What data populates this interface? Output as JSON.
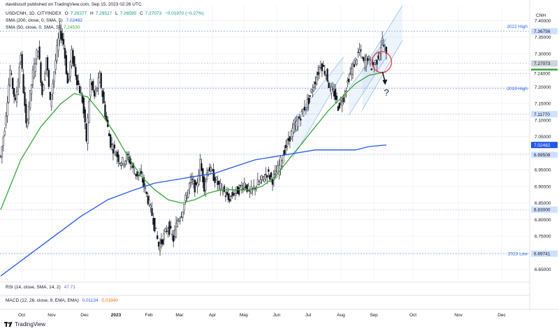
{
  "header": {
    "publisher": "davidscutt published on TradingView.com, Sep 15, 2023 02:26 UTC"
  },
  "legend": [
    {
      "name": "USD/CNH, 1D, CITYINDEX",
      "items": [
        {
          "label": "O",
          "value": "7.29377"
        },
        {
          "label": "H",
          "value": "7.29527"
        },
        {
          "label": "L",
          "value": "7.26595"
        },
        {
          "label": "C",
          "value": "7.27073"
        },
        {
          "label": "",
          "value": "−0.01970 (−0.27%)"
        }
      ]
    },
    {
      "name": "SMA (200, close, 0, SMA, 5)",
      "value": "7.02482",
      "color": "#2457e6"
    },
    {
      "name": "SMA (50, close, 0, SMA, 5)",
      "value": "7.24530",
      "color": "#3aa33a"
    }
  ],
  "currency_label": "CNH",
  "footer": {
    "brand": "TradingView"
  },
  "chart_data": [
    {
      "type": "candlestick",
      "symbol": "USD/CNH",
      "timeframe": "1D",
      "ylim": [
        6.62,
        7.445
      ],
      "y_ticks": [
        7.4,
        7.35,
        7.3,
        7.25,
        7.2,
        7.15,
        7.1,
        7.05,
        7.0,
        6.95,
        6.9,
        6.85,
        6.8,
        6.75,
        6.7,
        6.65
      ],
      "x_ticks": [
        "Oct",
        "Nov",
        "Dec",
        "2023",
        "Feb",
        "Mar",
        "Apr",
        "May",
        "Jun",
        "Jul",
        "Aug",
        "Sep",
        "Oct",
        "Nov",
        "Dec"
      ],
      "price_path": [
        [
          0,
          6.99
        ],
        [
          3,
          7.08
        ],
        [
          7,
          7.25
        ],
        [
          11,
          7.15
        ],
        [
          15,
          7.3
        ],
        [
          19,
          7.08
        ],
        [
          24,
          7.24
        ],
        [
          28,
          7.32
        ],
        [
          31,
          7.18
        ],
        [
          34,
          7.29
        ],
        [
          37,
          7.15
        ],
        [
          41,
          7.28
        ],
        [
          44,
          7.37
        ],
        [
          47,
          7.33
        ],
        [
          50,
          7.21
        ],
        [
          53,
          7.3
        ],
        [
          57,
          7.22
        ],
        [
          61,
          7.16
        ],
        [
          64,
          7.04
        ],
        [
          67,
          7.22
        ],
        [
          70,
          7.17
        ],
        [
          74,
          7.23
        ],
        [
          78,
          7.12
        ],
        [
          82,
          7.03
        ],
        [
          86,
          7.0
        ],
        [
          90,
          6.97
        ],
        [
          95,
          6.99
        ],
        [
          100,
          6.94
        ],
        [
          105,
          6.93
        ],
        [
          110,
          6.86
        ],
        [
          114,
          6.8
        ],
        [
          118,
          6.72
        ],
        [
          121,
          6.74
        ],
        [
          125,
          6.78
        ],
        [
          129,
          6.74
        ],
        [
          132,
          6.8
        ],
        [
          135,
          6.82
        ],
        [
          138,
          6.86
        ],
        [
          142,
          6.92
        ],
        [
          146,
          6.89
        ],
        [
          149,
          6.97
        ],
        [
          152,
          6.9
        ],
        [
          155,
          6.96
        ],
        [
          159,
          6.93
        ],
        [
          163,
          6.9
        ],
        [
          166,
          6.89
        ],
        [
          170,
          6.86
        ],
        [
          174,
          6.88
        ],
        [
          178,
          6.89
        ],
        [
          182,
          6.91
        ],
        [
          186,
          6.88
        ],
        [
          190,
          6.9
        ],
        [
          195,
          6.92
        ],
        [
          199,
          6.94
        ],
        [
          203,
          6.92
        ],
        [
          207,
          6.95
        ],
        [
          212,
          7.01
        ],
        [
          217,
          7.06
        ],
        [
          221,
          7.09
        ],
        [
          226,
          7.13
        ],
        [
          230,
          7.16
        ],
        [
          235,
          7.22
        ],
        [
          239,
          7.27
        ],
        [
          243,
          7.24
        ],
        [
          246,
          7.19
        ],
        [
          249,
          7.18
        ],
        [
          252,
          7.14
        ],
        [
          256,
          7.17
        ],
        [
          260,
          7.23
        ],
        [
          264,
          7.27
        ],
        [
          268,
          7.31
        ],
        [
          271,
          7.27
        ],
        [
          274,
          7.29
        ],
        [
          277,
          7.26
        ],
        [
          281,
          7.28
        ],
        [
          285,
          7.34
        ],
        [
          288,
          7.29
        ]
      ],
      "price_min": 6.69741,
      "price_max": 7.36756,
      "sma_50": [
        [
          0,
          6.83
        ],
        [
          15,
          6.98
        ],
        [
          30,
          7.08
        ],
        [
          45,
          7.15
        ],
        [
          55,
          7.18
        ],
        [
          65,
          7.17
        ],
        [
          75,
          7.12
        ],
        [
          85,
          7.06
        ],
        [
          95,
          6.99
        ],
        [
          105,
          6.93
        ],
        [
          115,
          6.89
        ],
        [
          125,
          6.86
        ],
        [
          135,
          6.85
        ],
        [
          145,
          6.86
        ],
        [
          155,
          6.88
        ],
        [
          165,
          6.89
        ],
        [
          175,
          6.89
        ],
        [
          185,
          6.89
        ],
        [
          195,
          6.9
        ],
        [
          205,
          6.93
        ],
        [
          215,
          6.98
        ],
        [
          225,
          7.03
        ],
        [
          235,
          7.08
        ],
        [
          245,
          7.13
        ],
        [
          255,
          7.17
        ],
        [
          265,
          7.21
        ],
        [
          275,
          7.235
        ],
        [
          288,
          7.2453
        ]
      ],
      "sma_200": [
        [
          0,
          6.63
        ],
        [
          20,
          6.69
        ],
        [
          40,
          6.75
        ],
        [
          60,
          6.81
        ],
        [
          80,
          6.86
        ],
        [
          100,
          6.89
        ],
        [
          115,
          6.91
        ],
        [
          130,
          6.92
        ],
        [
          145,
          6.93
        ],
        [
          160,
          6.94
        ],
        [
          175,
          6.96
        ],
        [
          190,
          6.98
        ],
        [
          205,
          6.99
        ],
        [
          220,
          7.0
        ],
        [
          235,
          7.01
        ],
        [
          250,
          7.01
        ],
        [
          265,
          7.01
        ],
        [
          275,
          7.02
        ],
        [
          288,
          7.02482
        ]
      ],
      "levels": [
        {
          "label": "2022 High",
          "value": 7.36756
        },
        {
          "label": "2019 High",
          "value": 7.196
        },
        {
          "label": "2023 Low",
          "value": 6.69741
        }
      ],
      "price_tags": [
        {
          "value": 7.36756,
          "text": "7.36756",
          "color": "#cfe0ff",
          "text_color": "#131722"
        },
        {
          "value": 7.27073,
          "text": "7.27073",
          "color": "#d1d4dc",
          "text_color": "#131722"
        },
        {
          "value": 7.2453,
          "text": "",
          "color": "#3aa33a",
          "text_color": "#ffffff"
        },
        {
          "value": 7.24,
          "text": "7.24000",
          "color": "#ffffff",
          "text_color": "#131722"
        },
        {
          "value": 7.1177,
          "text": "7.11770",
          "color": "#cfe0ff",
          "text_color": "#131722"
        },
        {
          "value": 7.02482,
          "text": "7.02482",
          "color": "#2457e6",
          "text_color": "#ffffff"
        },
        {
          "value": 6.99508,
          "text": "6.99508",
          "color": "#cfe0ff",
          "text_color": "#131722"
        },
        {
          "value": 6.83,
          "text": "6.83000",
          "color": "#cfe0ff",
          "text_color": "#131722"
        },
        {
          "value": 6.69741,
          "text": "6.69741",
          "color": "#cfe0ff",
          "text_color": "#131722"
        }
      ],
      "channels": [
        {
          "from": [
            218,
            6.985
          ],
          "to": [
            256,
            7.245
          ],
          "upper_from": [
            218,
            7.095
          ],
          "upper_to": [
            256,
            7.29
          ]
        },
        {
          "from": [
            260,
            7.115
          ],
          "to": [
            288,
            7.29
          ],
          "upper_from": [
            260,
            7.195
          ],
          "upper_to": [
            288,
            7.345
          ]
        },
        {
          "from": [
            270,
            7.13
          ],
          "to": [
            300,
            7.34
          ],
          "upper_from": [
            270,
            7.25
          ],
          "upper_to": [
            300,
            7.445
          ]
        }
      ],
      "annotation": {
        "text": "?"
      }
    },
    {
      "type": "line",
      "name": "RSI (14, close, SMA, 14, 2)",
      "value": "47.71",
      "value_color": "#7e57c2"
    },
    {
      "type": "bar",
      "name": "MACD (12, 26, close, 9, EMA, EMA)",
      "values": [
        "0.01134",
        "0.01840"
      ],
      "value_colors": [
        "#2962ff",
        "#ff6d00"
      ]
    }
  ]
}
